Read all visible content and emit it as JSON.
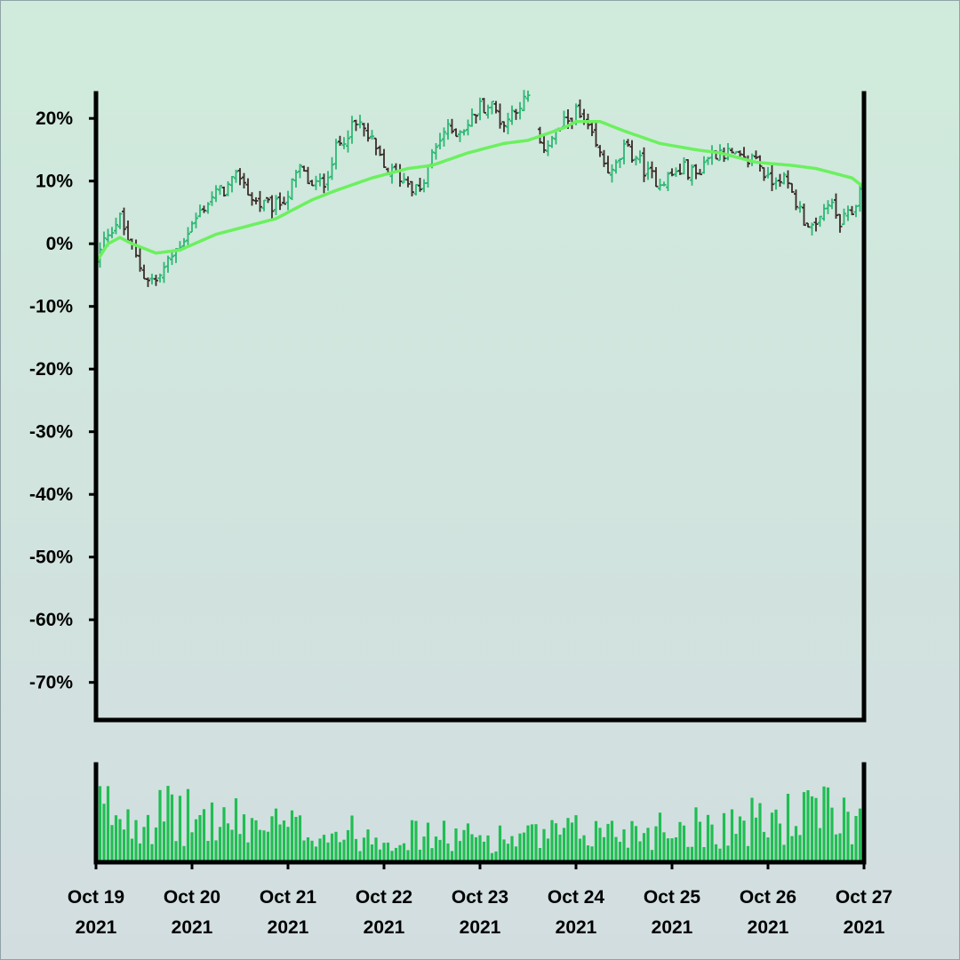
{
  "chart_data": {
    "type": "ohlc",
    "subtype": "percent-change OHLC bars with moving average and volume",
    "title": "",
    "xlabel": "",
    "ylabel": "",
    "y_unit": "%",
    "ylim": [
      -76,
      24
    ],
    "y_ticks": [
      "20%",
      "10%",
      "0%",
      "-10%",
      "-20%",
      "-30%",
      "-40%",
      "-50%",
      "-60%",
      "-70%"
    ],
    "y_tick_values": [
      20,
      10,
      0,
      -10,
      -20,
      -30,
      -40,
      -50,
      -60,
      -70
    ],
    "x_range": [
      "2021-10-19 00:00",
      "2021-10-27 00:00"
    ],
    "x_ticks": [
      {
        "date": "2021-10-19",
        "line1": "Oct 19",
        "line2": "2021"
      },
      {
        "date": "2021-10-20",
        "line1": "Oct 20",
        "line2": "2021"
      },
      {
        "date": "2021-10-21",
        "line1": "Oct 21",
        "line2": "2021"
      },
      {
        "date": "2021-10-22",
        "line1": "Oct 22",
        "line2": "2021"
      },
      {
        "date": "2021-10-23",
        "line1": "Oct 23",
        "line2": "2021"
      },
      {
        "date": "2021-10-24",
        "line1": "Oct 24",
        "line2": "2021"
      },
      {
        "date": "2021-10-25",
        "line1": "Oct 25",
        "line2": "2021"
      },
      {
        "date": "2021-10-26",
        "line1": "Oct 26",
        "line2": "2021"
      },
      {
        "date": "2021-10-27",
        "line1": "Oct 27",
        "line2": "2021"
      }
    ],
    "close_path": [
      [
        "2021-10-19 00:00",
        -3
      ],
      [
        "2021-10-19 03:00",
        2
      ],
      [
        "2021-10-19 06:00",
        4
      ],
      [
        "2021-10-19 09:00",
        -1
      ],
      [
        "2021-10-19 12:00",
        -5
      ],
      [
        "2021-10-19 15:00",
        -6
      ],
      [
        "2021-10-19 18:00",
        -3
      ],
      [
        "2021-10-19 21:00",
        0
      ],
      [
        "2021-10-20 00:00",
        3
      ],
      [
        "2021-10-20 03:00",
        6
      ],
      [
        "2021-10-20 06:00",
        8
      ],
      [
        "2021-10-20 09:00",
        9
      ],
      [
        "2021-10-20 12:00",
        11
      ],
      [
        "2021-10-20 15:00",
        7
      ],
      [
        "2021-10-20 18:00",
        6
      ],
      [
        "2021-10-20 21:00",
        6
      ],
      [
        "2021-10-21 00:00",
        8
      ],
      [
        "2021-10-21 03:00",
        12
      ],
      [
        "2021-10-21 06:00",
        9
      ],
      [
        "2021-10-21 09:00",
        10
      ],
      [
        "2021-10-21 12:00",
        15
      ],
      [
        "2021-10-21 15:00",
        18
      ],
      [
        "2021-10-21 18:00",
        19
      ],
      [
        "2021-10-21 21:00",
        16
      ],
      [
        "2021-10-22 00:00",
        12
      ],
      [
        "2021-10-22 03:00",
        11
      ],
      [
        "2021-10-22 06:00",
        10
      ],
      [
        "2021-10-22 09:00",
        8
      ],
      [
        "2021-10-22 12:00",
        14
      ],
      [
        "2021-10-22 15:00",
        18
      ],
      [
        "2021-10-22 18:00",
        18
      ],
      [
        "2021-10-22 21:00",
        19
      ],
      [
        "2021-10-23 00:00",
        22
      ],
      [
        "2021-10-23 03:00",
        22
      ],
      [
        "2021-10-23 06:00",
        19
      ],
      [
        "2021-10-23 09:00",
        22
      ],
      [
        "2021-10-23 12:00",
        23
      ],
      [
        "2021-10-23 15:00",
        15
      ],
      [
        "2021-10-23 18:00",
        17
      ],
      [
        "2021-10-23 21:00",
        19
      ],
      [
        "2021-10-24 00:00",
        21
      ],
      [
        "2021-10-24 03:00",
        18
      ],
      [
        "2021-10-24 06:00",
        14
      ],
      [
        "2021-10-24 09:00",
        11
      ],
      [
        "2021-10-24 12:00",
        15
      ],
      [
        "2021-10-24 15:00",
        14
      ],
      [
        "2021-10-24 18:00",
        11
      ],
      [
        "2021-10-24 21:00",
        10
      ],
      [
        "2021-10-25 00:00",
        11
      ],
      [
        "2021-10-25 03:00",
        12
      ],
      [
        "2021-10-25 06:00",
        11
      ],
      [
        "2021-10-25 09:00",
        14
      ],
      [
        "2021-10-25 12:00",
        15
      ],
      [
        "2021-10-25 15:00",
        14
      ],
      [
        "2021-10-25 18:00",
        13
      ],
      [
        "2021-10-25 21:00",
        14
      ],
      [
        "2021-10-26 00:00",
        10
      ],
      [
        "2021-10-26 03:00",
        11
      ],
      [
        "2021-10-26 06:00",
        8
      ],
      [
        "2021-10-26 09:00",
        4
      ],
      [
        "2021-10-26 12:00",
        2
      ],
      [
        "2021-10-26 15:00",
        7
      ],
      [
        "2021-10-26 18:00",
        3
      ],
      [
        "2021-10-26 21:00",
        5
      ],
      [
        "2021-10-27 00:00",
        10
      ]
    ],
    "moving_average": [
      [
        "2021-10-19 00:00",
        -3
      ],
      [
        "2021-10-19 03:00",
        0
      ],
      [
        "2021-10-19 06:00",
        1
      ],
      [
        "2021-10-19 09:00",
        0
      ],
      [
        "2021-10-19 15:00",
        -1.5
      ],
      [
        "2021-10-19 21:00",
        -1
      ],
      [
        "2021-10-20 06:00",
        1.5
      ],
      [
        "2021-10-20 12:00",
        2.5
      ],
      [
        "2021-10-20 21:00",
        4
      ],
      [
        "2021-10-21 06:00",
        7
      ],
      [
        "2021-10-21 12:00",
        8.5
      ],
      [
        "2021-10-21 21:00",
        10.5
      ],
      [
        "2021-10-22 06:00",
        12
      ],
      [
        "2021-10-22 12:00",
        12.5
      ],
      [
        "2021-10-22 21:00",
        14.5
      ],
      [
        "2021-10-23 06:00",
        16
      ],
      [
        "2021-10-23 12:00",
        16.5
      ],
      [
        "2021-10-23 21:00",
        18.5
      ],
      [
        "2021-10-24 00:00",
        19.5
      ],
      [
        "2021-10-24 06:00",
        19.5
      ],
      [
        "2021-10-24 12:00",
        18
      ],
      [
        "2021-10-24 21:00",
        16
      ],
      [
        "2021-10-25 06:00",
        15
      ],
      [
        "2021-10-25 12:00",
        14.5
      ],
      [
        "2021-10-25 21:00",
        13
      ],
      [
        "2021-10-26 06:00",
        12.5
      ],
      [
        "2021-10-26 12:00",
        12
      ],
      [
        "2021-10-26 21:00",
        10.5
      ],
      [
        "2021-10-27 00:00",
        9
      ]
    ],
    "bars_per_day": 24,
    "gap": [
      "2021-10-23 12:00",
      "2021-10-23 15:00"
    ],
    "volume_unit": "relative",
    "volume_level": [
      [
        "2021-10-19 00:00",
        0.55
      ],
      [
        "2021-10-19 12:00",
        0.5
      ],
      [
        "2021-10-20 00:00",
        0.45
      ],
      [
        "2021-10-20 12:00",
        0.4
      ],
      [
        "2021-10-21 00:00",
        0.35
      ],
      [
        "2021-10-21 12:00",
        0.3
      ],
      [
        "2021-10-22 00:00",
        0.28
      ],
      [
        "2021-10-22 12:00",
        0.27
      ],
      [
        "2021-10-23 00:00",
        0.25
      ],
      [
        "2021-10-23 12:00",
        0.25
      ],
      [
        "2021-10-24 00:00",
        0.3
      ],
      [
        "2021-10-24 12:00",
        0.32
      ],
      [
        "2021-10-25 00:00",
        0.36
      ],
      [
        "2021-10-25 12:00",
        0.38
      ],
      [
        "2021-10-26 00:00",
        0.42
      ],
      [
        "2021-10-26 12:00",
        0.5
      ],
      [
        "2021-10-27 00:00",
        0.45
      ]
    ],
    "colors": {
      "up": "#2bb673",
      "down": "#3a2a28",
      "moving_average": "#6cf05f",
      "volume": "#1fbe52",
      "axes": "#000000",
      "background_top": "#d0ebdc",
      "background_bottom": "#d2dde0"
    },
    "grid": false,
    "legend": "none"
  }
}
